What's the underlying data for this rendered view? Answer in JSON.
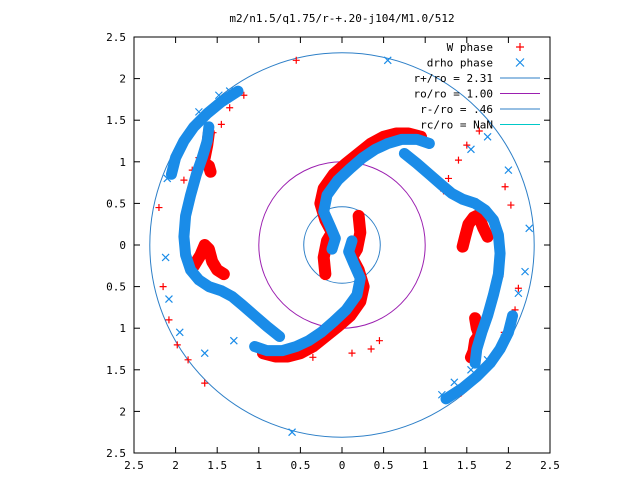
{
  "chart_data": {
    "type": "scatter",
    "title": "m2/n1.5/q1.75/r-+.20-j104/M1.0/512",
    "xlabel": "",
    "ylabel": "",
    "xlim": [
      -2.5,
      2.5
    ],
    "ylim": [
      -2.5,
      2.5
    ],
    "grid": false,
    "legend_position": "top-right",
    "x_ticks": [
      -2.5,
      -2,
      -1.5,
      -1,
      -0.5,
      0,
      0.5,
      1,
      1.5,
      2,
      2.5
    ],
    "y_ticks": [
      2.5,
      2,
      1.5,
      1,
      0.5,
      0,
      -0.5,
      -1,
      -1.5,
      -2,
      -2.5
    ],
    "x_tick_labels": [
      "2.5",
      "2",
      "1.5",
      "1",
      "0.5",
      "0",
      "0.5",
      "1",
      "1.5",
      "2",
      "2.5"
    ],
    "y_tick_labels": [
      "2.5",
      "2",
      "1.5",
      "1",
      "0.5",
      "0",
      "0.5",
      "1",
      "1.5",
      "2",
      "2.5"
    ],
    "series": [
      {
        "name": "W phase",
        "marker": "plus",
        "color": "#ff0000",
        "points": [
          [
            -2.2,
            0.45
          ],
          [
            -2.15,
            -0.5
          ],
          [
            -2.08,
            -0.9
          ],
          [
            -1.98,
            -1.2
          ],
          [
            -1.85,
            -1.38
          ],
          [
            -1.65,
            -1.66
          ],
          [
            -1.9,
            0.78
          ],
          [
            -1.8,
            0.9
          ],
          [
            -1.72,
            1.05
          ],
          [
            -1.65,
            1.18
          ],
          [
            -1.55,
            1.35
          ],
          [
            -1.45,
            1.45
          ],
          [
            -1.35,
            1.65
          ],
          [
            -1.18,
            1.8
          ],
          [
            -0.55,
            2.22
          ],
          [
            1.9,
            -0.38
          ],
          [
            1.96,
            0.7
          ],
          [
            2.03,
            0.48
          ],
          [
            1.65,
            1.37
          ],
          [
            1.5,
            1.2
          ],
          [
            1.4,
            1.02
          ],
          [
            1.28,
            0.8
          ],
          [
            1.22,
            0.65
          ],
          [
            1.43,
            -1.78
          ],
          [
            1.48,
            -1.72
          ],
          [
            1.58,
            -1.6
          ],
          [
            1.72,
            -1.45
          ],
          [
            1.85,
            -1.3
          ],
          [
            1.95,
            -1.05
          ],
          [
            2.08,
            -0.78
          ],
          [
            2.12,
            -0.52
          ],
          [
            0.45,
            -1.15
          ],
          [
            0.35,
            -1.25
          ],
          [
            0.12,
            -1.3
          ],
          [
            -0.35,
            -1.35
          ]
        ],
        "curves": [
          [
            [
              -0.2,
              -0.35
            ],
            [
              -0.22,
              -0.15
            ],
            [
              -0.18,
              0.05
            ],
            [
              -0.12,
              0.15
            ],
            [
              -0.2,
              0.3
            ],
            [
              -0.26,
              0.5
            ],
            [
              -0.22,
              0.68
            ],
            [
              -0.1,
              0.85
            ],
            [
              0.05,
              0.98
            ],
            [
              0.2,
              1.1
            ],
            [
              0.35,
              1.22
            ],
            [
              0.5,
              1.3
            ],
            [
              0.65,
              1.34
            ],
            [
              0.8,
              1.34
            ],
            [
              0.95,
              1.3
            ]
          ],
          [
            [
              0.2,
              0.35
            ],
            [
              0.22,
              0.15
            ],
            [
              0.18,
              -0.05
            ],
            [
              0.12,
              -0.15
            ],
            [
              0.2,
              -0.3
            ],
            [
              0.26,
              -0.5
            ],
            [
              0.22,
              -0.68
            ],
            [
              0.1,
              -0.85
            ],
            [
              -0.05,
              -0.98
            ],
            [
              -0.2,
              -1.1
            ],
            [
              -0.35,
              -1.22
            ],
            [
              -0.5,
              -1.3
            ],
            [
              -0.65,
              -1.34
            ],
            [
              -0.8,
              -1.34
            ],
            [
              -0.95,
              -1.3
            ]
          ],
          [
            [
              -1.6,
              1.35
            ],
            [
              -1.62,
              1.2
            ],
            [
              -1.65,
              1.05
            ],
            [
              -1.68,
              1.0
            ],
            [
              -1.6,
              0.95
            ],
            [
              -1.58,
              0.88
            ]
          ],
          [
            [
              -1.78,
              -0.25
            ],
            [
              -1.7,
              -0.12
            ],
            [
              -1.65,
              0.0
            ],
            [
              -1.6,
              -0.05
            ],
            [
              -1.56,
              -0.2
            ],
            [
              -1.5,
              -0.3
            ],
            [
              -1.42,
              -0.35
            ]
          ],
          [
            [
              1.6,
              -0.88
            ],
            [
              1.62,
              -1.0
            ],
            [
              1.65,
              -1.08
            ],
            [
              1.6,
              -1.15
            ],
            [
              1.58,
              -1.28
            ],
            [
              1.55,
              -1.35
            ]
          ],
          [
            [
              1.45,
              -0.02
            ],
            [
              1.48,
              0.1
            ],
            [
              1.52,
              0.25
            ],
            [
              1.58,
              0.33
            ],
            [
              1.62,
              0.35
            ],
            [
              1.66,
              0.3
            ],
            [
              1.7,
              0.2
            ],
            [
              1.75,
              0.1
            ]
          ]
        ]
      },
      {
        "name": "drho phase",
        "marker": "cross",
        "color": "#1a8ce8",
        "points": [
          [
            0.55,
            2.22
          ],
          [
            -0.6,
            -2.25
          ],
          [
            2.25,
            0.2
          ],
          [
            1.55,
            1.15
          ],
          [
            1.75,
            1.3
          ],
          [
            2.0,
            0.9
          ],
          [
            -1.35,
            1.85
          ],
          [
            -1.48,
            1.8
          ],
          [
            -1.72,
            1.6
          ],
          [
            -2.1,
            0.8
          ],
          [
            -2.12,
            -0.15
          ],
          [
            -2.08,
            -0.65
          ],
          [
            -1.95,
            -1.05
          ],
          [
            -1.65,
            -1.3
          ],
          [
            -1.3,
            -1.15
          ],
          [
            1.2,
            -1.8
          ],
          [
            1.35,
            -1.65
          ],
          [
            1.55,
            -1.5
          ],
          [
            1.75,
            -1.38
          ],
          [
            1.95,
            -1.12
          ],
          [
            2.05,
            -0.85
          ],
          [
            2.12,
            -0.58
          ],
          [
            2.2,
            -0.32
          ]
        ],
        "curves": [
          [
            [
              -0.12,
              -0.05
            ],
            [
              -0.08,
              0.08
            ],
            [
              -0.14,
              0.22
            ],
            [
              -0.22,
              0.4
            ],
            [
              -0.18,
              0.6
            ],
            [
              -0.05,
              0.78
            ],
            [
              0.1,
              0.92
            ],
            [
              0.25,
              1.05
            ],
            [
              0.4,
              1.15
            ],
            [
              0.55,
              1.22
            ],
            [
              0.72,
              1.27
            ],
            [
              0.9,
              1.27
            ],
            [
              1.05,
              1.22
            ]
          ],
          [
            [
              0.12,
              0.05
            ],
            [
              0.08,
              -0.08
            ],
            [
              0.14,
              -0.22
            ],
            [
              0.22,
              -0.4
            ],
            [
              0.18,
              -0.6
            ],
            [
              0.05,
              -0.78
            ],
            [
              -0.1,
              -0.92
            ],
            [
              -0.25,
              -1.05
            ],
            [
              -0.4,
              -1.15
            ],
            [
              -0.55,
              -1.22
            ],
            [
              -0.72,
              -1.27
            ],
            [
              -0.9,
              -1.27
            ],
            [
              -1.05,
              -1.22
            ]
          ],
          [
            [
              -1.6,
              1.42
            ],
            [
              -1.62,
              1.25
            ],
            [
              -1.68,
              1.05
            ],
            [
              -1.75,
              0.85
            ],
            [
              -1.82,
              0.6
            ],
            [
              -1.88,
              0.35
            ],
            [
              -1.9,
              0.1
            ],
            [
              -1.88,
              -0.12
            ],
            [
              -1.82,
              -0.3
            ],
            [
              -1.72,
              -0.42
            ],
            [
              -1.6,
              -0.5
            ],
            [
              -1.45,
              -0.55
            ],
            [
              -1.32,
              -0.62
            ],
            [
              -1.2,
              -0.72
            ],
            [
              -1.05,
              -0.85
            ],
            [
              -0.9,
              -0.98
            ],
            [
              -0.75,
              -1.1
            ]
          ],
          [
            [
              1.6,
              -1.42
            ],
            [
              1.62,
              -1.25
            ],
            [
              1.68,
              -1.05
            ],
            [
              1.75,
              -0.85
            ],
            [
              1.82,
              -0.6
            ],
            [
              1.88,
              -0.35
            ],
            [
              1.9,
              -0.1
            ],
            [
              1.88,
              0.12
            ],
            [
              1.82,
              0.3
            ],
            [
              1.72,
              0.42
            ],
            [
              1.6,
              0.5
            ],
            [
              1.45,
              0.55
            ],
            [
              1.32,
              0.62
            ],
            [
              1.2,
              0.72
            ],
            [
              1.05,
              0.85
            ],
            [
              0.9,
              0.98
            ],
            [
              0.75,
              1.1
            ]
          ],
          [
            [
              -1.25,
              1.85
            ],
            [
              -1.45,
              1.72
            ],
            [
              -1.62,
              1.58
            ],
            [
              -1.78,
              1.42
            ],
            [
              -1.9,
              1.25
            ],
            [
              -2.0,
              1.05
            ],
            [
              -2.05,
              0.85
            ]
          ],
          [
            [
              1.25,
              -1.85
            ],
            [
              1.45,
              -1.72
            ],
            [
              1.62,
              -1.58
            ],
            [
              1.78,
              -1.42
            ],
            [
              1.9,
              -1.25
            ],
            [
              2.0,
              -1.05
            ],
            [
              2.05,
              -0.85
            ]
          ]
        ]
      },
      {
        "name": "r+/ro = 2.31",
        "type": "circle",
        "radius": 2.31,
        "color": "#2d7fc7"
      },
      {
        "name": "ro/ro = 1.00",
        "type": "circle",
        "radius": 1.0,
        "color": "#9b1fb0"
      },
      {
        "name": "r-/ro = .46",
        "type": "circle",
        "radius": 0.46,
        "color": "#2d7fc7"
      },
      {
        "name": "rc/ro = NaN",
        "type": "circle",
        "radius": null,
        "color": "#00c8c8"
      }
    ]
  }
}
